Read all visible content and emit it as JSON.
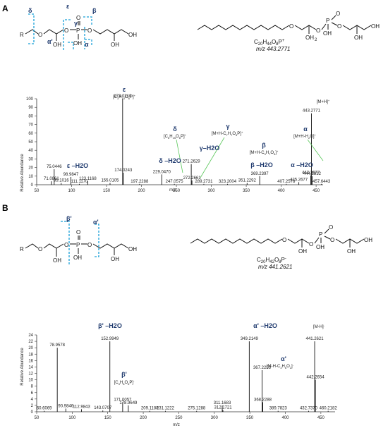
{
  "panels": [
    {
      "letter": "A",
      "formula": "C20H44O8P+",
      "formula_parts": [
        "C",
        "20",
        "H",
        "44",
        "O",
        "8",
        "P",
        "+"
      ],
      "mz_label": "m/z 443.2771",
      "struct_cut_labels": [
        "δ",
        "ε",
        "β",
        "γ",
        "α'",
        "α"
      ],
      "chart_data": {
        "type": "bar",
        "xlabel": "m/z",
        "ylabel": "Relative Abundance",
        "xlim": [
          50,
          460
        ],
        "ylim": [
          0,
          100
        ],
        "xticks": [
          50,
          100,
          150,
          200,
          250,
          300,
          350,
          400,
          450
        ],
        "yticks": [
          0,
          10,
          20,
          30,
          40,
          50,
          60,
          70,
          80,
          90,
          100
        ],
        "peaks": [
          {
            "x": 71.0861,
            "y": 4,
            "label": "71.0861"
          },
          {
            "x": 75.0446,
            "y": 18,
            "label": "75.0446"
          },
          {
            "x": 85.1016,
            "y": 2,
            "label": "85.1016"
          },
          {
            "x": 98.9847,
            "y": 9,
            "label": "98.9847"
          },
          {
            "x": 111.117,
            "y": 1,
            "label": "111.1170"
          },
          {
            "x": 123.1168,
            "y": 4,
            "label": "123.1168"
          },
          {
            "x": 155.0105,
            "y": 2,
            "label": "155.0105"
          },
          {
            "x": 173.021,
            "y": 100,
            "label": "173.0210"
          },
          {
            "x": 174.0243,
            "y": 14,
            "label": "174.0243"
          },
          {
            "x": 197.2288,
            "y": 1,
            "label": "197.2288"
          },
          {
            "x": 229.047,
            "y": 12,
            "label": "229.0470"
          },
          {
            "x": 247.0575,
            "y": 1,
            "label": "247.0575"
          },
          {
            "x": 271.2629,
            "y": 24,
            "label": "271.2629"
          },
          {
            "x": 272.2661,
            "y": 5,
            "label": "272.2661"
          },
          {
            "x": 289.2731,
            "y": 1,
            "label": "289.2731"
          },
          {
            "x": 323.2004,
            "y": 1,
            "label": "323.2004"
          },
          {
            "x": 351.2292,
            "y": 2,
            "label": "351.2292"
          },
          {
            "x": 369.2397,
            "y": 10,
            "label": "369.2397"
          },
          {
            "x": 407.2578,
            "y": 1,
            "label": "407.2578"
          },
          {
            "x": 425.2677,
            "y": 3,
            "label": "425.2677"
          },
          {
            "x": 442.3677,
            "y": 11,
            "label": "442.3677"
          },
          {
            "x": 443.2771,
            "y": 83,
            "label": "443.2771"
          },
          {
            "x": 444.2812,
            "y": 10,
            "label": "444.2812"
          },
          {
            "x": 457.6443,
            "y": 1,
            "label": "457.6443"
          }
        ]
      },
      "annotations": [
        {
          "greek": "ε",
          "text": "[C3H10O6P]+",
          "parts": [
            "[C",
            "3",
            "H",
            "10",
            "O",
            "6",
            "P]",
            "+"
          ]
        },
        {
          "greek": "δ",
          "text": "[C6H15O6P]+",
          "parts": [
            "[C",
            "6",
            "H",
            "15",
            "O",
            "6",
            "P]",
            "+"
          ]
        },
        {
          "greek": "γ",
          "text": "[M+H-C7H7O5P]+",
          "parts": [
            "[M+H-C",
            "7",
            "H",
            "7",
            "O",
            "5",
            "P]",
            "+"
          ]
        },
        {
          "greek": "β",
          "text": "[M+H-C3H7O5]+",
          "parts": [
            "[M+H-C",
            "3",
            "H",
            "7",
            "O",
            "5",
            "]",
            "+"
          ]
        },
        {
          "greek": "α",
          "text": "[M+H-H2O]+",
          "parts": [
            "[M+H-H",
            "2",
            "O]",
            "+"
          ]
        },
        {
          "greek": "",
          "text": "[M+H]+",
          "parts": [
            "[M+H]",
            "+"
          ]
        },
        {
          "greek": "ε –H2O",
          "text": ""
        },
        {
          "greek": "δ –H2O",
          "text": ""
        },
        {
          "greek": "γ–H2O",
          "text": ""
        },
        {
          "greek": "β –H2O",
          "text": ""
        },
        {
          "greek": "α –H2O",
          "text": ""
        }
      ]
    },
    {
      "letter": "B",
      "formula": "C20H42O8P-",
      "formula_parts": [
        "C",
        "20",
        "H",
        "42",
        "O",
        "8",
        "P",
        "-"
      ],
      "mz_label": "m/z 441.2621",
      "struct_cut_labels": [
        "β'",
        "α'"
      ],
      "chart_data": {
        "type": "bar",
        "xlabel": "m/z",
        "ylabel": "Relative Abundance",
        "xlim": [
          50,
          470
        ],
        "ylim": [
          0,
          24
        ],
        "xticks": [
          50,
          100,
          150,
          200,
          250,
          300,
          350,
          400,
          450
        ],
        "yticks": [
          0,
          2,
          4,
          6,
          8,
          10,
          12,
          14,
          16,
          18,
          20,
          22,
          24
        ],
        "peaks": [
          {
            "x": 60.6069,
            "y": 0.3,
            "label": "60.6069"
          },
          {
            "x": 78.9578,
            "y": 20,
            "label": "78.9578"
          },
          {
            "x": 90.9846,
            "y": 1,
            "label": "90.9846"
          },
          {
            "x": 112.9843,
            "y": 0.8,
            "label": "112.9843"
          },
          {
            "x": 143.0707,
            "y": 0.4,
            "label": "143.0707"
          },
          {
            "x": 152.9949,
            "y": 22,
            "label": "152.9949"
          },
          {
            "x": 171.0057,
            "y": 3,
            "label": "171.0057"
          },
          {
            "x": 178.9649,
            "y": 2,
            "label": "178.9649"
          },
          {
            "x": 209.1188,
            "y": 0.3,
            "label": "209.1188"
          },
          {
            "x": 231.1222,
            "y": 0.3,
            "label": "231.1222"
          },
          {
            "x": 275.1288,
            "y": 0.3,
            "label": "275.1288"
          },
          {
            "x": 311.1683,
            "y": 2,
            "label": "311.1683"
          },
          {
            "x": 312.1721,
            "y": 0.5,
            "label": "312.1721"
          },
          {
            "x": 349.2149,
            "y": 22,
            "label": "349.2149"
          },
          {
            "x": 367.2253,
            "y": 13,
            "label": "367.2253"
          },
          {
            "x": 368.2288,
            "y": 3,
            "label": "368.2288"
          },
          {
            "x": 389.7823,
            "y": 0.3,
            "label": "389.7823"
          },
          {
            "x": 432.737,
            "y": 0.3,
            "label": "432.7370"
          },
          {
            "x": 441.2621,
            "y": 22,
            "label": "441.2621"
          },
          {
            "x": 442.2654,
            "y": 10,
            "label": "442.2654"
          },
          {
            "x": 460.2182,
            "y": 0.3,
            "label": "460.2182"
          }
        ]
      },
      "annotations": [
        {
          "greek": "β'",
          "text": "[C3H8O6P]-",
          "parts": [
            "[C",
            "3",
            "H",
            "8",
            "O",
            "6",
            "P]",
            "-"
          ]
        },
        {
          "greek": "α'",
          "text": "[M-H-C3H6O2]-",
          "parts": [
            "[M-H-C",
            "3",
            "H",
            "6",
            "O",
            "2",
            "]",
            "-"
          ]
        },
        {
          "greek": "",
          "text": "[M-H]-",
          "parts": [
            "[M-H]",
            "-"
          ]
        },
        {
          "greek": "β' –H2O",
          "text": ""
        },
        {
          "greek": "α' –H2O",
          "text": ""
        }
      ]
    }
  ]
}
